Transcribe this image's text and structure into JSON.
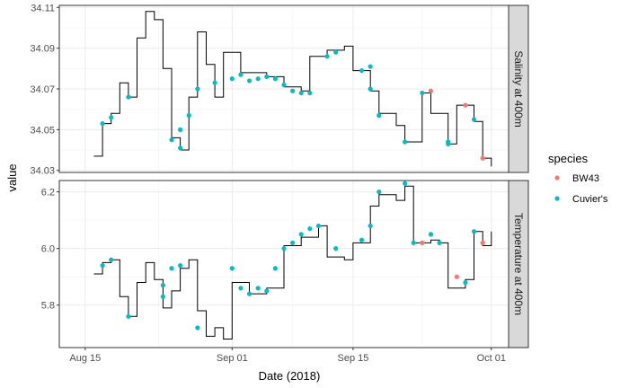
{
  "chart_data": {
    "type": "line",
    "xlabel": "Date (2018)",
    "ylabel": "value",
    "x_ticks": [
      "Aug 15",
      "Sep 01",
      "Sep 15",
      "Oct 01"
    ],
    "x_range": [
      "2018-08-12",
      "2018-10-03"
    ],
    "legend": {
      "title": "species",
      "position": "right",
      "entries": [
        {
          "name": "BW43",
          "color": "#F8766D"
        },
        {
          "name": "Cuvier's",
          "color": "#00BFC4"
        }
      ]
    },
    "grid": true,
    "panels": [
      {
        "strip": "Salinity at 400m",
        "ylim": [
          34.029,
          34.111
        ],
        "y_ticks": [
          34.03,
          34.05,
          34.07,
          34.09,
          34.11
        ],
        "tick_labels": [
          "34.03",
          "34.05",
          "34.07",
          "34.09",
          "34.11"
        ],
        "line": [
          [
            "2018-08-16",
            34.037
          ],
          [
            "2018-08-17",
            34.053
          ],
          [
            "2018-08-18",
            34.058
          ],
          [
            "2018-08-19",
            34.073
          ],
          [
            "2018-08-20",
            34.066
          ],
          [
            "2018-08-21",
            34.095
          ],
          [
            "2018-08-22",
            34.108
          ],
          [
            "2018-08-23",
            34.104
          ],
          [
            "2018-08-24",
            34.08
          ],
          [
            "2018-08-25",
            34.046
          ],
          [
            "2018-08-26",
            34.04
          ],
          [
            "2018-08-27",
            34.066
          ],
          [
            "2018-08-28",
            34.098
          ],
          [
            "2018-08-29",
            34.082
          ],
          [
            "2018-08-30",
            34.066
          ],
          [
            "2018-08-31",
            34.088
          ],
          [
            "2018-09-02",
            34.078
          ],
          [
            "2018-09-05",
            34.076
          ],
          [
            "2018-09-07",
            34.071
          ],
          [
            "2018-09-09",
            34.069
          ],
          [
            "2018-09-10",
            34.086
          ],
          [
            "2018-09-12",
            34.089
          ],
          [
            "2018-09-14",
            34.091
          ],
          [
            "2018-09-15",
            34.079
          ],
          [
            "2018-09-17",
            34.069
          ],
          [
            "2018-09-18",
            34.058
          ],
          [
            "2018-09-20",
            34.052
          ],
          [
            "2018-09-21",
            34.044
          ],
          [
            "2018-09-23",
            34.068
          ],
          [
            "2018-09-24",
            34.058
          ],
          [
            "2018-09-26",
            34.043
          ],
          [
            "2018-09-27",
            34.062
          ],
          [
            "2018-09-29",
            34.054
          ],
          [
            "2018-09-30",
            34.036
          ],
          [
            "2018-10-01",
            34.032
          ]
        ],
        "points": [
          {
            "species": "Cuvier's",
            "x": "2018-08-17",
            "y": 34.053
          },
          {
            "species": "Cuvier's",
            "x": "2018-08-18",
            "y": 34.056
          },
          {
            "species": "Cuvier's",
            "x": "2018-08-20",
            "y": 34.066
          },
          {
            "species": "Cuvier's",
            "x": "2018-08-25",
            "y": 34.045
          },
          {
            "species": "Cuvier's",
            "x": "2018-08-26",
            "y": 34.041
          },
          {
            "species": "Cuvier's",
            "x": "2018-08-26",
            "y": 34.05
          },
          {
            "species": "Cuvier's",
            "x": "2018-08-27",
            "y": 34.057
          },
          {
            "species": "Cuvier's",
            "x": "2018-08-28",
            "y": 34.07
          },
          {
            "species": "Cuvier's",
            "x": "2018-08-30",
            "y": 34.073
          },
          {
            "species": "Cuvier's",
            "x": "2018-09-01",
            "y": 34.075
          },
          {
            "species": "Cuvier's",
            "x": "2018-09-02",
            "y": 34.077
          },
          {
            "species": "Cuvier's",
            "x": "2018-09-03",
            "y": 34.074
          },
          {
            "species": "Cuvier's",
            "x": "2018-09-04",
            "y": 34.075
          },
          {
            "species": "Cuvier's",
            "x": "2018-09-05",
            "y": 34.076
          },
          {
            "species": "Cuvier's",
            "x": "2018-09-06",
            "y": 34.075
          },
          {
            "species": "Cuvier's",
            "x": "2018-09-07",
            "y": 34.072
          },
          {
            "species": "Cuvier's",
            "x": "2018-09-08",
            "y": 34.069
          },
          {
            "species": "Cuvier's",
            "x": "2018-09-09",
            "y": 34.068
          },
          {
            "species": "Cuvier's",
            "x": "2018-09-10",
            "y": 34.068
          },
          {
            "species": "Cuvier's",
            "x": "2018-09-12",
            "y": 34.086
          },
          {
            "species": "Cuvier's",
            "x": "2018-09-13",
            "y": 34.088
          },
          {
            "species": "Cuvier's",
            "x": "2018-09-16",
            "y": 34.079
          },
          {
            "species": "Cuvier's",
            "x": "2018-09-17",
            "y": 34.081
          },
          {
            "species": "Cuvier's",
            "x": "2018-09-17",
            "y": 34.07
          },
          {
            "species": "Cuvier's",
            "x": "2018-09-18",
            "y": 34.057
          },
          {
            "species": "Cuvier's",
            "x": "2018-09-21",
            "y": 34.044
          },
          {
            "species": "Cuvier's",
            "x": "2018-09-23",
            "y": 34.068
          },
          {
            "species": "BW43",
            "x": "2018-09-24",
            "y": 34.069
          },
          {
            "species": "Cuvier's",
            "x": "2018-09-26",
            "y": 34.044
          },
          {
            "species": "Cuvier's",
            "x": "2018-09-26",
            "y": 34.043
          },
          {
            "species": "BW43",
            "x": "2018-09-28",
            "y": 34.062
          },
          {
            "species": "Cuvier's",
            "x": "2018-09-29",
            "y": 34.055
          },
          {
            "species": "BW43",
            "x": "2018-09-30",
            "y": 34.036
          }
        ]
      },
      {
        "strip": "Temperature at 400m",
        "ylim": [
          5.65,
          6.24
        ],
        "y_ticks": [
          5.8,
          6.0,
          6.2
        ],
        "tick_labels": [
          "5.8",
          "6.0",
          "6.2"
        ],
        "line": [
          [
            "2018-08-16",
            5.91
          ],
          [
            "2018-08-17",
            5.95
          ],
          [
            "2018-08-18",
            5.96
          ],
          [
            "2018-08-19",
            5.83
          ],
          [
            "2018-08-20",
            5.76
          ],
          [
            "2018-08-21",
            5.88
          ],
          [
            "2018-08-22",
            5.95
          ],
          [
            "2018-08-23",
            5.89
          ],
          [
            "2018-08-24",
            5.79
          ],
          [
            "2018-08-25",
            5.85
          ],
          [
            "2018-08-26",
            5.93
          ],
          [
            "2018-08-27",
            5.96
          ],
          [
            "2018-08-28",
            5.78
          ],
          [
            "2018-08-29",
            5.69
          ],
          [
            "2018-08-30",
            5.72
          ],
          [
            "2018-08-31",
            5.68
          ],
          [
            "2018-09-01",
            5.88
          ],
          [
            "2018-09-03",
            5.84
          ],
          [
            "2018-09-05",
            5.86
          ],
          [
            "2018-09-07",
            6.01
          ],
          [
            "2018-09-09",
            6.04
          ],
          [
            "2018-09-11",
            6.08
          ],
          [
            "2018-09-12",
            5.97
          ],
          [
            "2018-09-14",
            5.96
          ],
          [
            "2018-09-15",
            6.02
          ],
          [
            "2018-09-17",
            6.15
          ],
          [
            "2018-09-18",
            6.19
          ],
          [
            "2018-09-20",
            6.17
          ],
          [
            "2018-09-21",
            6.22
          ],
          [
            "2018-09-22",
            6.02
          ],
          [
            "2018-09-24",
            6.03
          ],
          [
            "2018-09-25",
            6.02
          ],
          [
            "2018-09-26",
            5.86
          ],
          [
            "2018-09-28",
            5.89
          ],
          [
            "2018-09-29",
            6.06
          ],
          [
            "2018-09-30",
            6.01
          ],
          [
            "2018-10-01",
            6.06
          ]
        ],
        "points": [
          {
            "species": "Cuvier's",
            "x": "2018-08-17",
            "y": 5.94
          },
          {
            "species": "Cuvier's",
            "x": "2018-08-18",
            "y": 5.96
          },
          {
            "species": "Cuvier's",
            "x": "2018-08-20",
            "y": 5.76
          },
          {
            "species": "Cuvier's",
            "x": "2018-08-24",
            "y": 5.83
          },
          {
            "species": "Cuvier's",
            "x": "2018-08-24",
            "y": 5.87
          },
          {
            "species": "Cuvier's",
            "x": "2018-08-25",
            "y": 5.93
          },
          {
            "species": "Cuvier's",
            "x": "2018-08-26",
            "y": 5.94
          },
          {
            "species": "Cuvier's",
            "x": "2018-08-28",
            "y": 5.72
          },
          {
            "species": "Cuvier's",
            "x": "2018-09-01",
            "y": 5.93
          },
          {
            "species": "Cuvier's",
            "x": "2018-09-02",
            "y": 5.86
          },
          {
            "species": "Cuvier's",
            "x": "2018-09-03",
            "y": 5.84
          },
          {
            "species": "Cuvier's",
            "x": "2018-09-04",
            "y": 5.86
          },
          {
            "species": "Cuvier's",
            "x": "2018-09-05",
            "y": 5.85
          },
          {
            "species": "Cuvier's",
            "x": "2018-09-06",
            "y": 5.93
          },
          {
            "species": "Cuvier's",
            "x": "2018-09-07",
            "y": 6.0
          },
          {
            "species": "Cuvier's",
            "x": "2018-09-08",
            "y": 6.02
          },
          {
            "species": "Cuvier's",
            "x": "2018-09-09",
            "y": 6.05
          },
          {
            "species": "Cuvier's",
            "x": "2018-09-10",
            "y": 6.07
          },
          {
            "species": "Cuvier's",
            "x": "2018-09-11",
            "y": 6.08
          },
          {
            "species": "Cuvier's",
            "x": "2018-09-13",
            "y": 6.0
          },
          {
            "species": "Cuvier's",
            "x": "2018-09-16",
            "y": 6.03
          },
          {
            "species": "Cuvier's",
            "x": "2018-09-17",
            "y": 6.08
          },
          {
            "species": "Cuvier's",
            "x": "2018-09-18",
            "y": 6.2
          },
          {
            "species": "Cuvier's",
            "x": "2018-09-21",
            "y": 6.23
          },
          {
            "species": "Cuvier's",
            "x": "2018-09-22",
            "y": 6.02
          },
          {
            "species": "BW43",
            "x": "2018-09-23",
            "y": 6.02
          },
          {
            "species": "Cuvier's",
            "x": "2018-09-24",
            "y": 6.05
          },
          {
            "species": "Cuvier's",
            "x": "2018-09-25",
            "y": 6.02
          },
          {
            "species": "BW43",
            "x": "2018-09-27",
            "y": 5.9
          },
          {
            "species": "Cuvier's",
            "x": "2018-09-28",
            "y": 5.88
          },
          {
            "species": "Cuvier's",
            "x": "2018-09-29",
            "y": 6.06
          },
          {
            "species": "BW43",
            "x": "2018-09-30",
            "y": 6.02
          }
        ]
      }
    ]
  }
}
